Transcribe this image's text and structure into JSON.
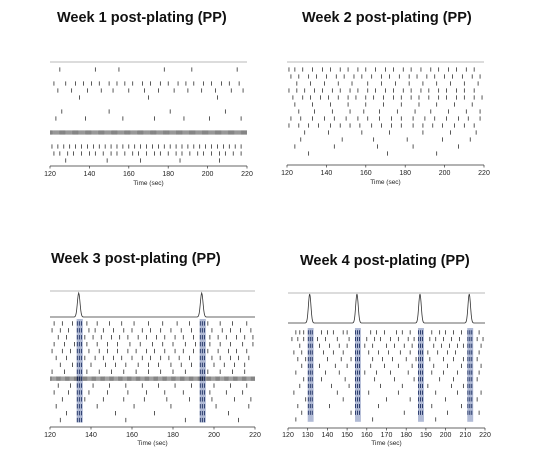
{
  "chart_data": [
    {
      "type": "raster",
      "title": "Week 1 post-plating (PP)",
      "xlabel": "Time (sec)",
      "xlim": [
        120,
        220
      ],
      "xticks": [
        120,
        140,
        160,
        180,
        200,
        220
      ],
      "has_trace": false,
      "dense_rows": [
        9
      ],
      "bursts": [],
      "rows": [
        [
          125,
          143,
          155,
          178,
          192,
          215
        ],
        [],
        [
          122,
          128,
          133,
          137,
          141,
          145,
          150,
          154,
          158,
          162,
          167,
          171,
          176,
          180,
          185,
          189,
          193,
          198,
          202,
          207,
          211,
          216
        ],
        [
          124,
          131,
          139,
          146,
          152,
          160,
          168,
          175,
          183,
          190,
          197,
          204,
          212,
          218
        ],
        [
          135,
          170,
          205
        ],
        [],
        [
          126,
          150,
          181,
          209
        ],
        [
          123,
          138,
          157,
          173,
          188,
          201,
          217
        ],
        [],
        [],
        [],
        [
          121,
          124,
          127,
          130,
          133,
          136,
          139,
          142,
          145,
          148,
          151,
          154,
          157,
          160,
          163,
          166,
          169,
          172,
          175,
          178,
          181,
          184,
          187,
          190,
          193,
          196,
          199,
          202,
          205,
          208,
          211,
          214,
          217
        ],
        [
          122,
          125,
          129,
          132,
          136,
          140,
          143,
          147,
          151,
          154,
          158,
          162,
          165,
          169,
          173,
          176,
          180,
          184,
          187,
          191,
          195,
          198,
          202,
          206,
          209,
          213,
          217
        ],
        [
          128,
          149,
          166,
          186,
          206
        ]
      ]
    },
    {
      "type": "raster",
      "title": "Week 2 post-plating (PP)",
      "xlabel": "Time (sec)",
      "xlim": [
        120,
        220
      ],
      "xticks": [
        120,
        140,
        160,
        180,
        200,
        220
      ],
      "has_trace": false,
      "dense_rows": [],
      "bursts": [],
      "rows": [
        [
          121,
          124,
          128,
          133,
          138,
          142,
          147,
          151,
          156,
          160,
          165,
          170,
          174,
          179,
          183,
          188,
          193,
          197,
          202,
          206,
          211,
          215
        ],
        [
          122,
          126,
          131,
          135,
          140,
          145,
          149,
          154,
          158,
          163,
          168,
          172,
          177,
          182,
          186,
          191,
          195,
          200,
          204,
          209,
          214,
          218
        ],
        [
          125,
          132,
          139,
          146,
          153,
          161,
          168,
          175,
          182,
          189,
          196,
          203,
          210,
          217
        ],
        [
          121,
          125,
          129,
          134,
          138,
          143,
          147,
          152,
          156,
          161,
          165,
          170,
          174,
          179,
          183,
          188,
          192,
          197,
          201,
          206,
          210,
          215
        ],
        [
          123,
          128,
          132,
          137,
          141,
          146,
          151,
          155,
          160,
          164,
          169,
          174,
          178,
          183,
          187,
          192,
          197,
          201,
          206,
          210,
          215,
          219
        ],
        [
          124,
          133,
          142,
          151,
          160,
          169,
          178,
          187,
          196,
          205,
          214
        ],
        [
          126,
          134,
          143,
          152,
          159,
          167,
          176,
          185,
          193,
          202,
          211,
          218
        ],
        [
          122,
          127,
          133,
          139,
          144,
          150,
          156,
          161,
          167,
          173,
          178,
          184,
          190,
          195,
          201,
          207,
          212,
          218
        ],
        [
          121,
          126,
          131,
          136,
          142,
          147,
          152,
          157,
          163,
          168,
          173,
          178,
          184,
          189,
          194,
          199,
          205,
          210,
          215
        ],
        [
          129,
          141,
          158,
          172,
          189,
          203,
          216
        ],
        [
          127,
          148,
          164,
          181,
          199,
          213
        ],
        [
          124,
          144,
          166,
          184,
          207
        ],
        [
          131,
          171,
          196
        ]
      ]
    },
    {
      "type": "raster",
      "title": "Week 3 post-plating (PP)",
      "xlabel": "Time (sec)",
      "xlim": [
        120,
        220
      ],
      "xticks": [
        120,
        140,
        160,
        180,
        200,
        220
      ],
      "has_trace": true,
      "trace_peaks": [
        134,
        194
      ],
      "dense_rows": [
        8
      ],
      "bursts": [
        [
          133,
          136
        ],
        [
          193,
          196
        ]
      ],
      "rows": [
        [
          122,
          126,
          131,
          138,
          143,
          149,
          155,
          161,
          168,
          175,
          182,
          188,
          197,
          203,
          209,
          216
        ],
        [
          121,
          125,
          129,
          139,
          142,
          146,
          151,
          156,
          160,
          165,
          169,
          174,
          179,
          184,
          189,
          199,
          204,
          208,
          213,
          218
        ],
        [
          124,
          128,
          137,
          141,
          145,
          150,
          154,
          158,
          163,
          167,
          172,
          176,
          181,
          185,
          190,
          198,
          202,
          206,
          211,
          215,
          219
        ],
        [
          122,
          127,
          132,
          138,
          143,
          148,
          153,
          159,
          164,
          170,
          175,
          180,
          186,
          191,
          198,
          203,
          208,
          214,
          219
        ],
        [
          121,
          126,
          130,
          139,
          144,
          148,
          153,
          158,
          162,
          167,
          171,
          176,
          181,
          185,
          190,
          197,
          202,
          207,
          211,
          216
        ],
        [
          123,
          128,
          137,
          142,
          146,
          151,
          155,
          160,
          165,
          169,
          174,
          178,
          183,
          188,
          199,
          203,
          208,
          212,
          217
        ],
        [
          125,
          131,
          140,
          147,
          152,
          157,
          163,
          168,
          173,
          179,
          184,
          189,
          200,
          205,
          210,
          215
        ],
        [
          121,
          127,
          138,
          144,
          150,
          156,
          162,
          168,
          174,
          180,
          186,
          197,
          203,
          209,
          215
        ],
        [],
        [
          124,
          130,
          141,
          149,
          157,
          165,
          173,
          181,
          189,
          200,
          208,
          216
        ],
        [
          122,
          129,
          139,
          148,
          158,
          167,
          176,
          185,
          198,
          206,
          214
        ],
        [
          126,
          137,
          146,
          156,
          166,
          177,
          188,
          199,
          210,
          218
        ],
        [
          123,
          143,
          161,
          179,
          201,
          217
        ],
        [
          128,
          152,
          171,
          207
        ],
        [
          125,
          157,
          186,
          212
        ]
      ]
    },
    {
      "type": "raster",
      "title": "Week 4 post-plating (PP)",
      "xlabel": "Time (sec)",
      "xlim": [
        120,
        220
      ],
      "xticks": [
        120,
        130,
        140,
        150,
        160,
        170,
        180,
        190,
        200,
        210,
        220
      ],
      "has_trace": true,
      "trace_peaks": [
        131,
        155,
        187,
        212
      ],
      "dense_rows": [],
      "bursts": [
        [
          130,
          133
        ],
        [
          154,
          157
        ],
        [
          186,
          189
        ],
        [
          211,
          214
        ]
      ],
      "rows": [
        [
          124,
          126,
          128,
          137,
          140,
          143,
          148,
          150,
          162,
          165,
          169,
          175,
          178,
          182,
          193,
          197,
          200,
          204,
          208,
          217
        ],
        [
          122,
          125,
          128,
          135,
          139,
          145,
          151,
          160,
          164,
          167,
          172,
          176,
          181,
          184,
          192,
          195,
          199,
          203,
          207,
          216,
          219
        ],
        [
          126,
          136,
          141,
          146,
          150,
          159,
          163,
          170,
          174,
          179,
          183,
          194,
          198,
          202,
          206,
          209,
          218
        ],
        [
          123,
          127,
          138,
          143,
          148,
          161,
          166,
          171,
          177,
          182,
          191,
          196,
          201,
          205,
          217
        ],
        [
          125,
          129,
          140,
          147,
          152,
          163,
          168,
          173,
          180,
          185,
          192,
          199,
          204,
          209,
          216
        ],
        [
          127,
          136,
          144,
          150,
          162,
          169,
          176,
          183,
          194,
          201,
          208,
          218
        ],
        [
          124,
          139,
          146,
          159,
          165,
          172,
          181,
          193,
          199,
          206,
          217
        ],
        [
          128,
          137,
          149,
          164,
          174,
          184,
          197,
          204,
          216
        ],
        [
          126,
          142,
          151,
          167,
          178,
          191,
          203,
          209
        ],
        [
          123,
          145,
          161,
          176,
          195,
          206,
          218
        ],
        [
          129,
          148,
          170,
          182,
          200,
          216
        ],
        [
          125,
          141,
          166,
          193,
          208
        ],
        [
          127,
          152,
          179,
          201,
          217
        ],
        [
          124,
          163,
          195
        ]
      ]
    }
  ]
}
